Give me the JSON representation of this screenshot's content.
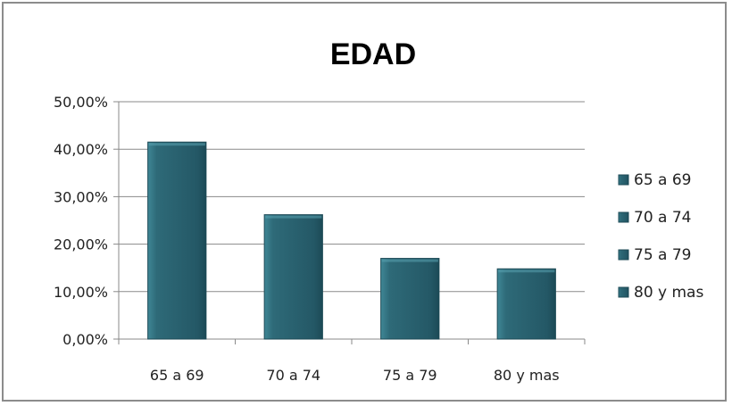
{
  "chart_data": {
    "type": "bar",
    "title": "EDAD",
    "categories": [
      "65 a 69",
      "70 a 74",
      "75 a 79",
      "80 y mas"
    ],
    "values": [
      41.5,
      26.2,
      17.0,
      14.8
    ],
    "ylim": [
      0,
      50
    ],
    "yticks": [
      "0,00%",
      "10,00%",
      "20,00%",
      "30,00%",
      "40,00%",
      "50,00%"
    ],
    "xlabel": "",
    "ylabel": "",
    "grid": true,
    "legend_position": "right",
    "legend": [
      "65 a 69",
      "70 a 74",
      "75 a 79",
      "80 y mas"
    ],
    "bar_color": "#2e6a78"
  }
}
